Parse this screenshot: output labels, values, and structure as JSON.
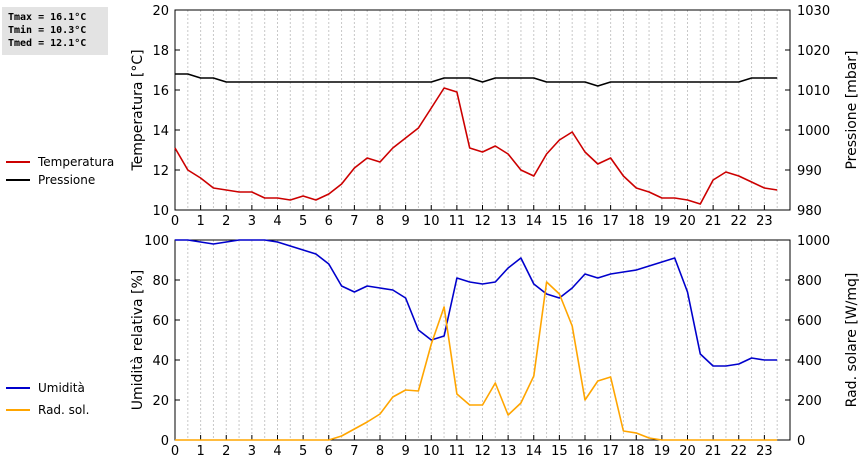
{
  "stats": {
    "tmax": "Tmax = 16.1°C",
    "tmin": "Tmin = 10.3°C",
    "tmed": "Tmed = 12.1°C"
  },
  "chart_data": [
    {
      "type": "line",
      "x_ticks": [
        "0",
        "1",
        "2",
        "3",
        "4",
        "5",
        "6",
        "7",
        "8",
        "9",
        "10",
        "11",
        "12",
        "13",
        "14",
        "15",
        "16",
        "17",
        "18",
        "19",
        "20",
        "21",
        "22",
        "23"
      ],
      "xlim": [
        0,
        24
      ],
      "ylabel_left": "Temperatura [°C]",
      "ylabel_right": "Pressione [mbar]",
      "ylim_left": [
        10,
        20
      ],
      "yticks_left": [
        "10",
        "12",
        "14",
        "16",
        "18",
        "20"
      ],
      "ylim_right": [
        980,
        1030
      ],
      "yticks_right": [
        "980",
        "990",
        "1000",
        "1010",
        "1020",
        "1030"
      ],
      "grid": "vertical",
      "legend_position": "left",
      "series": [
        {
          "name": "Temperatura",
          "color": "#cc0000",
          "axis": "left",
          "x": [
            0,
            0.5,
            1,
            1.5,
            2,
            2.5,
            3,
            3.5,
            4,
            4.5,
            5,
            5.5,
            6,
            6.5,
            7,
            7.5,
            8,
            8.5,
            9,
            9.5,
            10,
            10.5,
            11,
            11.5,
            12,
            12.5,
            13,
            13.5,
            14,
            14.5,
            15,
            15.5,
            16,
            16.5,
            17,
            17.5,
            18,
            18.5,
            19,
            19.5,
            20,
            20.5,
            21,
            21.5,
            22,
            22.5,
            23,
            23.5
          ],
          "y": [
            13.1,
            12.0,
            11.6,
            11.1,
            11.0,
            10.9,
            10.9,
            10.6,
            10.6,
            10.5,
            10.7,
            10.5,
            10.8,
            11.3,
            12.1,
            12.6,
            12.4,
            13.1,
            13.6,
            14.1,
            15.1,
            16.1,
            15.9,
            13.1,
            12.9,
            13.2,
            12.8,
            12.0,
            11.7,
            12.8,
            13.5,
            13.9,
            12.9,
            12.3,
            12.6,
            11.7,
            11.1,
            10.9,
            10.6,
            10.6,
            10.5,
            10.3,
            11.5,
            11.9,
            11.7,
            11.4,
            11.1,
            11.0
          ]
        },
        {
          "name": "Pressione",
          "color": "#000000",
          "axis": "right",
          "x": [
            0,
            0.5,
            1,
            1.5,
            2,
            2.5,
            3,
            3.5,
            4,
            4.5,
            5,
            5.5,
            6,
            6.5,
            7,
            7.5,
            8,
            8.5,
            9,
            9.5,
            10,
            10.5,
            11,
            11.5,
            12,
            12.5,
            13,
            13.5,
            14,
            14.5,
            15,
            15.5,
            16,
            16.5,
            17,
            17.5,
            18,
            18.5,
            19,
            19.5,
            20,
            20.5,
            21,
            21.5,
            22,
            22.5,
            23,
            23.5
          ],
          "y": [
            1014,
            1014,
            1013,
            1013,
            1012,
            1012,
            1012,
            1012,
            1012,
            1012,
            1012,
            1012,
            1012,
            1012,
            1012,
            1012,
            1012,
            1012,
            1012,
            1012,
            1012,
            1013,
            1013,
            1013,
            1012,
            1013,
            1013,
            1013,
            1013,
            1012,
            1012,
            1012,
            1012,
            1011,
            1012,
            1012,
            1012,
            1012,
            1012,
            1012,
            1012,
            1012,
            1012,
            1012,
            1012,
            1013,
            1013,
            1013
          ]
        }
      ]
    },
    {
      "type": "line",
      "x_ticks": [
        "0",
        "1",
        "2",
        "3",
        "4",
        "5",
        "6",
        "7",
        "8",
        "9",
        "10",
        "11",
        "12",
        "13",
        "14",
        "15",
        "16",
        "17",
        "18",
        "19",
        "20",
        "21",
        "22",
        "23"
      ],
      "xlim": [
        0,
        24
      ],
      "ylabel_left": "Umidità relativa [%]",
      "ylabel_right": "Rad. solare [W/mq]",
      "ylim_left": [
        0,
        100
      ],
      "yticks_left": [
        "0",
        "20",
        "40",
        "60",
        "80",
        "100"
      ],
      "ylim_right": [
        0,
        1000
      ],
      "yticks_right": [
        "0",
        "200",
        "400",
        "600",
        "800",
        "1000"
      ],
      "grid": "vertical",
      "legend_position": "left",
      "series": [
        {
          "name": "Umidità",
          "color": "#0000cc",
          "axis": "left",
          "x": [
            0,
            0.5,
            1,
            1.5,
            2,
            2.5,
            3,
            3.5,
            4,
            4.5,
            5,
            5.5,
            6,
            6.5,
            7,
            7.5,
            8,
            8.5,
            9,
            9.5,
            10,
            10.5,
            11,
            11.5,
            12,
            12.5,
            13,
            13.5,
            14,
            14.5,
            15,
            15.5,
            16,
            16.5,
            17,
            17.5,
            18,
            18.5,
            19,
            19.5,
            20,
            20.5,
            21,
            21.5,
            22,
            22.5,
            23,
            23.5
          ],
          "y": [
            100,
            100,
            99,
            98,
            99,
            100,
            100,
            100,
            99,
            97,
            95,
            93,
            88,
            77,
            74,
            77,
            76,
            75,
            71,
            55,
            50,
            52,
            81,
            79,
            78,
            79,
            86,
            91,
            78,
            73,
            71,
            76,
            83,
            81,
            83,
            84,
            85,
            87,
            89,
            91,
            74,
            43,
            37,
            37,
            38,
            41,
            40,
            40
          ]
        },
        {
          "name": "Rad. sol.",
          "color": "#ffa500",
          "axis": "right",
          "x": [
            0,
            0.5,
            1,
            1.5,
            2,
            2.5,
            3,
            3.5,
            4,
            4.5,
            5,
            5.5,
            6,
            6.5,
            7,
            7.5,
            8,
            8.5,
            9,
            9.5,
            10,
            10.5,
            11,
            11.5,
            12,
            12.5,
            13,
            13.5,
            14,
            14.5,
            15,
            15.5,
            16,
            16.5,
            17,
            17.5,
            18,
            18.5,
            19,
            19.5,
            20,
            20.5,
            21,
            21.5,
            22,
            22.5,
            23,
            23.5
          ],
          "y": [
            0,
            0,
            0,
            0,
            0,
            0,
            0,
            0,
            0,
            0,
            0,
            0,
            0,
            20,
            55,
            90,
            130,
            215,
            250,
            245,
            480,
            665,
            230,
            175,
            175,
            285,
            125,
            185,
            320,
            790,
            730,
            570,
            200,
            295,
            315,
            45,
            35,
            10,
            0,
            0,
            0,
            0,
            0,
            0,
            0,
            0,
            0,
            0
          ]
        }
      ]
    }
  ]
}
